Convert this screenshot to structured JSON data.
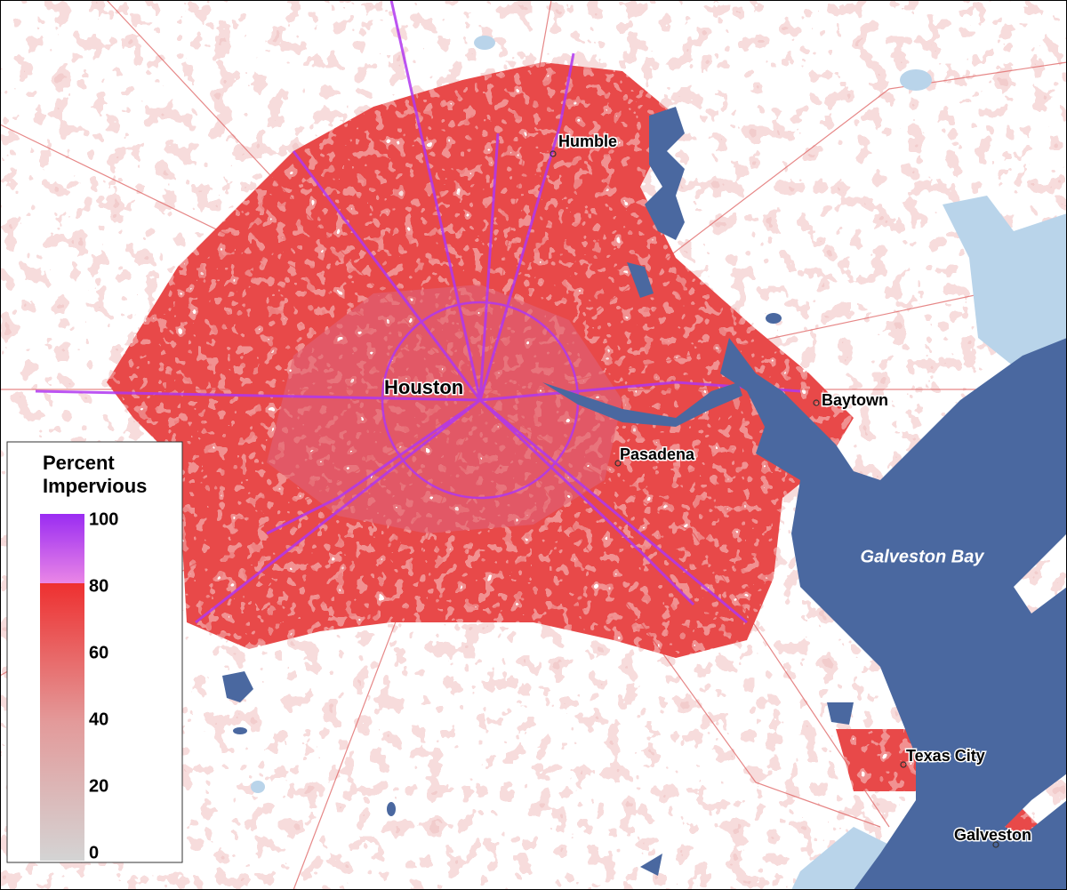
{
  "map": {
    "legend": {
      "title_lines": [
        "Percent",
        "Impervious"
      ],
      "ticks": [
        100,
        80,
        60,
        40,
        20,
        0
      ]
    },
    "cities": [
      "Humble",
      "Houston",
      "Pasadena",
      "Baytown",
      "Texas City",
      "Galveston"
    ],
    "water_label": "Galveston Bay"
  }
}
